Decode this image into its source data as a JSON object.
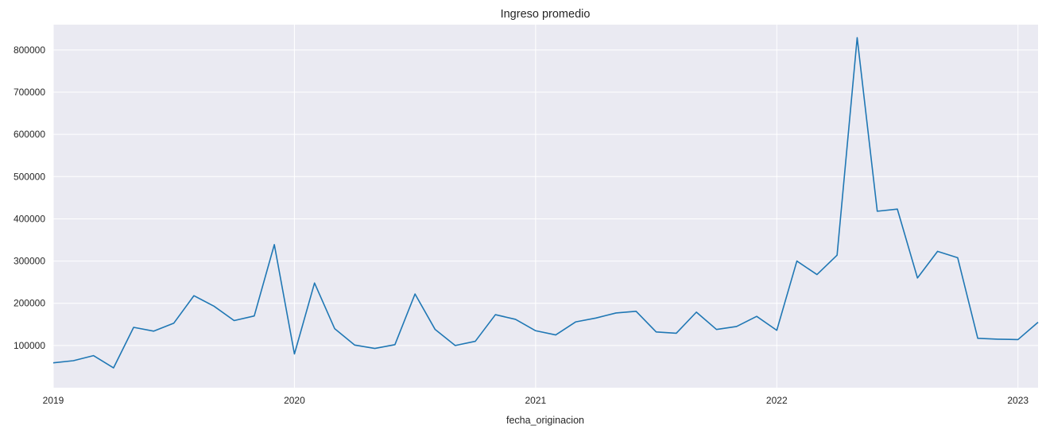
{
  "chart_data": {
    "type": "line",
    "title": "Ingreso promedio",
    "xlabel": "fecha_originacion",
    "ylabel": "",
    "x_tick_labels": [
      "2019",
      "2020",
      "2021",
      "2022",
      "2023"
    ],
    "y_tick_labels": [
      "100000",
      "200000",
      "300000",
      "400000",
      "500000",
      "600000",
      "700000",
      "800000"
    ],
    "xlim": [
      "2019-01",
      "2023-02"
    ],
    "ylim": [
      0,
      860000
    ],
    "grid": true,
    "colors": {
      "background": "#eaeaf2",
      "grid": "#ffffff",
      "line": "#1f77b4",
      "text": "#262626"
    },
    "series": [
      {
        "x": [
          "2019-01",
          "2019-02",
          "2019-03",
          "2019-04",
          "2019-05",
          "2019-06",
          "2019-07",
          "2019-08",
          "2019-09",
          "2019-10",
          "2019-11",
          "2019-12",
          "2020-01",
          "2020-02",
          "2020-03",
          "2020-04",
          "2020-05",
          "2020-06",
          "2020-07",
          "2020-08",
          "2020-09",
          "2020-10",
          "2020-11",
          "2020-12",
          "2021-01",
          "2021-02",
          "2021-03",
          "2021-04",
          "2021-05",
          "2021-06",
          "2021-07",
          "2021-08",
          "2021-09",
          "2021-10",
          "2021-11",
          "2021-12",
          "2022-01",
          "2022-02",
          "2022-03",
          "2022-04",
          "2022-05",
          "2022-06",
          "2022-07",
          "2022-08",
          "2022-09",
          "2022-10",
          "2022-11",
          "2022-12",
          "2023-01",
          "2023-02"
        ],
        "values": [
          59000,
          64000,
          76000,
          47000,
          143000,
          134000,
          153000,
          218000,
          193000,
          159000,
          170000,
          339000,
          80000,
          248000,
          140000,
          101000,
          93000,
          102000,
          222000,
          138000,
          100000,
          110000,
          173000,
          162000,
          135000,
          125000,
          156000,
          165000,
          177000,
          181000,
          132000,
          129000,
          179000,
          138000,
          145000,
          169000,
          136000,
          300000,
          268000,
          314000,
          829000,
          418000,
          423000,
          260000,
          323000,
          308000,
          117000,
          115000,
          114000,
          155000
        ]
      }
    ]
  }
}
